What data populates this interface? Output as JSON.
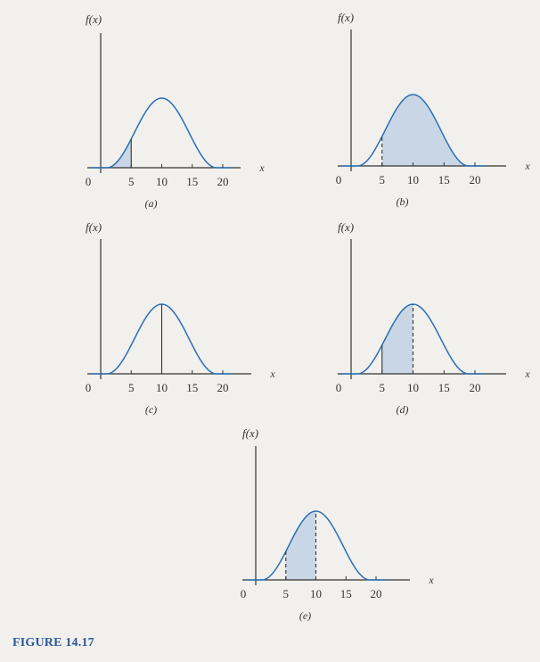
{
  "figure_caption": "FIGURE 14.17",
  "colors": {
    "curve": "#2a6fb5",
    "shade": "#b9cde4",
    "axis": "#333333",
    "caption": "#2a5aa0",
    "background": "#f1f0ec"
  },
  "panels": [
    {
      "id": "a",
      "caption": "(a)",
      "y_label": "f(x)",
      "x_label": "x",
      "origin_label": "0",
      "x_ticks": [
        "5",
        "10",
        "15",
        "20"
      ],
      "shade_from": 1,
      "shade_to": 5,
      "lines": [
        {
          "x": 5,
          "style": "solid"
        }
      ]
    },
    {
      "id": "b",
      "caption": "(b)",
      "y_label": "f(x)",
      "x_label": "x",
      "origin_label": "0",
      "x_ticks": [
        "5",
        "10",
        "15",
        "20"
      ],
      "shade_from": 5,
      "shade_to": 19,
      "lines": [
        {
          "x": 5,
          "style": "dashed"
        }
      ]
    },
    {
      "id": "c",
      "caption": "(c)",
      "y_label": "f(x)",
      "x_label": "x",
      "origin_label": "0",
      "x_ticks": [
        "5",
        "10",
        "15",
        "20"
      ],
      "shade_from": null,
      "shade_to": null,
      "lines": [
        {
          "x": 10,
          "style": "solid"
        }
      ]
    },
    {
      "id": "d",
      "caption": "(d)",
      "y_label": "f(x)",
      "x_label": "x",
      "origin_label": "0",
      "x_ticks": [
        "5",
        "10",
        "15",
        "20"
      ],
      "shade_from": 5,
      "shade_to": 10,
      "lines": [
        {
          "x": 5,
          "style": "solid"
        },
        {
          "x": 10,
          "style": "dashed"
        }
      ]
    },
    {
      "id": "e",
      "caption": "(e)",
      "y_label": "f(x)",
      "x_label": "x",
      "origin_label": "0",
      "x_ticks": [
        "5",
        "10",
        "15",
        "20"
      ],
      "shade_from": 5,
      "shade_to": 10,
      "lines": [
        {
          "x": 5,
          "style": "dashed"
        },
        {
          "x": 10,
          "style": "dashed"
        }
      ]
    }
  ]
}
